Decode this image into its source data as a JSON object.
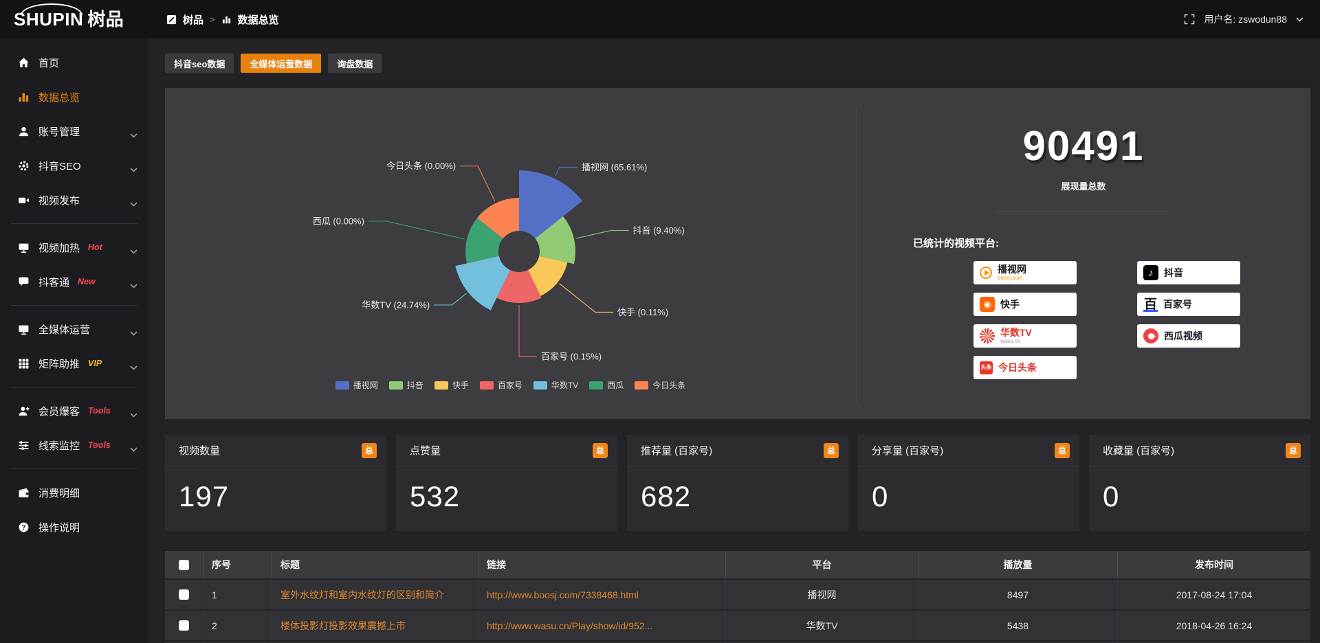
{
  "brand": {
    "logo_en": "SHUPIN",
    "logo_cn": "树品"
  },
  "topbar": {
    "breadcrumb": [
      "树品",
      "数据总览"
    ],
    "breadcrumb_separator": ">",
    "username": "用户名: zswodun88"
  },
  "theme": {
    "accent_orange": "#e7810e",
    "tag_red": "#f5484d",
    "tag_yellow": "#f7bd2a",
    "link_orange": "#e08a2e"
  },
  "sidebar": {
    "items": [
      {
        "icon": "home",
        "label": "首页"
      },
      {
        "icon": "chart",
        "label": "数据总览",
        "active": true
      },
      {
        "icon": "user",
        "label": "账号管理",
        "chevron": true
      },
      {
        "icon": "gear",
        "label": "抖音SEO",
        "chevron": true
      },
      {
        "icon": "video",
        "label": "视频发布",
        "chevron": true
      },
      {
        "divider": true
      },
      {
        "icon": "heat",
        "label": "视频加热",
        "badge": "Hot",
        "badge_color": "red",
        "chevron": true
      },
      {
        "icon": "chat",
        "label": "抖客通",
        "badge": "New",
        "badge_color": "red",
        "chevron": true
      },
      {
        "divider": true
      },
      {
        "icon": "monitor",
        "label": "全媒体运营",
        "chevron": true
      },
      {
        "icon": "grid",
        "label": "矩阵助推",
        "badge": "VIP",
        "badge_color": "yellow",
        "chevron": true
      },
      {
        "divider": true
      },
      {
        "icon": "member",
        "label": "会员爆客",
        "badge": "Tools",
        "badge_color": "red",
        "chevron": true
      },
      {
        "icon": "sliders",
        "label": "线索监控",
        "badge": "Tools",
        "badge_color": "red",
        "chevron": true
      },
      {
        "divider": true
      },
      {
        "icon": "wallet",
        "label": "消费明细"
      },
      {
        "icon": "help",
        "label": "操作说明"
      }
    ]
  },
  "tabs": [
    {
      "label": "抖音seo数据",
      "active": false
    },
    {
      "label": "全媒体运营数据",
      "active": true
    },
    {
      "label": "询盘数据",
      "active": false
    }
  ],
  "chart_data": {
    "type": "pie",
    "subtype": "nightingale-rose",
    "title": "",
    "categories": [
      "播视网",
      "抖音",
      "快手",
      "百家号",
      "华数TV",
      "西瓜",
      "今日头条"
    ],
    "values_percent": [
      65.61,
      9.4,
      0.11,
      0.15,
      24.74,
      0.0,
      0.0
    ],
    "colors": [
      "#5470c6",
      "#91cc75",
      "#fac858",
      "#ee6666",
      "#73c0de",
      "#3ba272",
      "#fc8452"
    ],
    "legend": [
      "播视网",
      "抖音",
      "快手",
      "百家号",
      "华数TV",
      "西瓜",
      "今日头条"
    ],
    "legend_position": "bottom",
    "inner_radius": 30,
    "outer_radii": [
      118,
      82,
      72,
      75,
      95,
      78,
      78
    ],
    "leader_len": [
      18,
      55,
      70,
      78,
      30,
      120,
      60
    ]
  },
  "summary": {
    "total_value": "90491",
    "total_label": "展现量总数",
    "platforms_title": "已统计的视频平台:",
    "platforms": [
      {
        "key": "boosj",
        "name": "播视网",
        "sub": "boosj.com"
      },
      {
        "key": "kuaishou",
        "name": "快手"
      },
      {
        "key": "wasu",
        "name": "华数TV",
        "sub": "wasu.cn"
      },
      {
        "key": "toutiao",
        "name": "今日头条"
      },
      {
        "key": "douyin",
        "name": "抖音"
      },
      {
        "key": "baijiahao",
        "name": "百家号"
      },
      {
        "key": "xigua",
        "name": "西瓜视频"
      }
    ]
  },
  "stat_cards": [
    {
      "label": "视频数量",
      "badge": "总",
      "value": "197"
    },
    {
      "label": "点赞量",
      "badge": "总",
      "value": "532"
    },
    {
      "label": "推荐量 (百家号)",
      "badge": "总",
      "value": "682"
    },
    {
      "label": "分享量 (百家号)",
      "badge": "总",
      "value": "0"
    },
    {
      "label": "收藏量 (百家号)",
      "badge": "总",
      "value": "0"
    }
  ],
  "table": {
    "columns": [
      "",
      "序号",
      "标题",
      "链接",
      "平台",
      "播放量",
      "发布时间"
    ],
    "rows": [
      {
        "seq": "1",
        "title": "室外水纹灯和室内水纹灯的区别和简介",
        "link": "http://www.boosj.com/7338468.html",
        "platform": "播视网",
        "plays": "8497",
        "time": "2017-08-24 17:04"
      },
      {
        "seq": "2",
        "title": "楼体投影灯投影效果震撼上市",
        "link": "http://www.wasu.cn/Play/show/id/952...",
        "platform": "华数TV",
        "plays": "5438",
        "time": "2018-04-26 16:24"
      }
    ]
  }
}
